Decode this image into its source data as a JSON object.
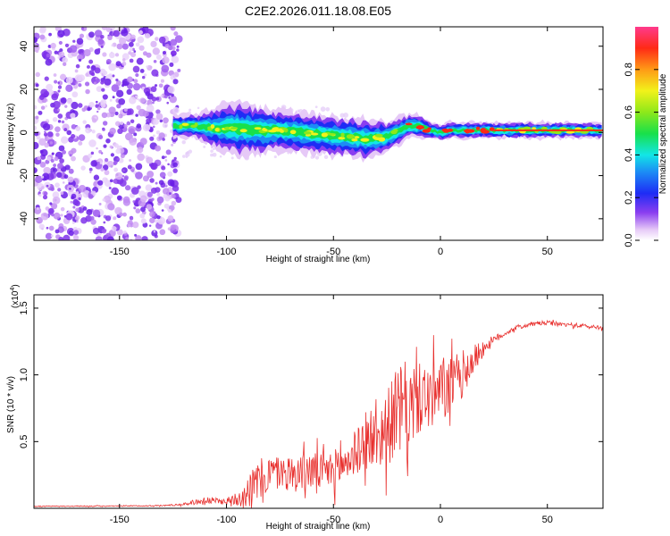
{
  "chart_data": [
    {
      "type": "heatmap",
      "title": "C2E2.2026.011.18.08.E05",
      "xlabel": "Height of straight line (km)",
      "ylabel": "Frequency (Hz)",
      "xlim": [
        -190,
        76
      ],
      "ylim": [
        -50,
        49
      ],
      "xticks": [
        -150,
        -100,
        -50,
        0,
        50
      ],
      "yticks": [
        -40,
        -20,
        0,
        20,
        40
      ],
      "xtick_labels": [
        "-150",
        "-100",
        "-50",
        "0",
        "50"
      ],
      "ytick_labels": [
        "-40",
        "-20",
        "0",
        "20",
        "40"
      ],
      "noise_region_x": [
        -190,
        -122
      ],
      "ridge": {
        "x": [
          -125,
          -115,
          -105,
          -95,
          -85,
          -75,
          -65,
          -55,
          -45,
          -35,
          -25,
          -15,
          -10,
          -5,
          0,
          5,
          10,
          15,
          20,
          30,
          40,
          50,
          60,
          76
        ],
        "center_hz": [
          3,
          3,
          2,
          2,
          1,
          1,
          0,
          -1,
          -2,
          -3,
          -2,
          3,
          3,
          1,
          0,
          1,
          1,
          1,
          1,
          1,
          1,
          1,
          1,
          1
        ],
        "width_hz": [
          3,
          3,
          5,
          7,
          6,
          5,
          5,
          5,
          5,
          5,
          4,
          3,
          3,
          2,
          2,
          2,
          2,
          2,
          2,
          2,
          2,
          2,
          2,
          2
        ]
      }
    },
    {
      "type": "line",
      "xlabel": "Height of straight line (km)",
      "ylabel": "SNR (10 * v/v)",
      "scale_note": "(x10",
      "scale_exp": "4",
      "xlim": [
        -190,
        76
      ],
      "ylim": [
        0,
        16000
      ],
      "xticks": [
        -150,
        -100,
        -50,
        0,
        50
      ],
      "yticks": [
        5000,
        10000,
        15000
      ],
      "xtick_labels": [
        "-150",
        "-100",
        "-50",
        "0",
        "50"
      ],
      "ytick_labels": [
        "0.5",
        "1.0",
        "1.5"
      ],
      "series": [
        {
          "name": "SNR",
          "color": "#e8302e",
          "x": [
            -190,
            -170,
            -150,
            -130,
            -120,
            -110,
            -100,
            -95,
            -90,
            -85,
            -80,
            -75,
            -70,
            -65,
            -60,
            -55,
            -50,
            -45,
            -40,
            -35,
            -30,
            -25,
            -20,
            -15,
            -10,
            -5,
            0,
            5,
            10,
            15,
            20,
            25,
            30,
            35,
            40,
            45,
            50,
            55,
            60,
            65,
            70,
            76
          ],
          "base": [
            150,
            160,
            170,
            200,
            300,
            600,
            500,
            800,
            1300,
            2000,
            2600,
            2700,
            2600,
            2700,
            2800,
            2700,
            2900,
            3300,
            4200,
            4700,
            5200,
            6000,
            7300,
            7600,
            8200,
            8400,
            8600,
            9200,
            10000,
            11000,
            12000,
            12600,
            13100,
            13500,
            13700,
            13850,
            13900,
            13800,
            13750,
            13700,
            13600,
            13550
          ],
          "amp": [
            60,
            60,
            60,
            80,
            150,
            500,
            400,
            1200,
            2200,
            3000,
            2600,
            2300,
            2500,
            2600,
            2600,
            2600,
            2700,
            2900,
            3000,
            3400,
            4300,
            5200,
            6000,
            6500,
            4800,
            4600,
            4500,
            4000,
            3300,
            2200,
            1200,
            600,
            400,
            300,
            300,
            300,
            300,
            300,
            300,
            300,
            300,
            300
          ]
        }
      ]
    }
  ],
  "colorbar": {
    "label": "Normalized spectral amplitude",
    "range": [
      0.0,
      1.0
    ],
    "ticks": [
      0.0,
      0.2,
      0.4,
      0.6,
      0.8
    ],
    "tick_labels": [
      "0.0",
      "0.2",
      "0.4",
      "0.6",
      "0.8"
    ]
  }
}
